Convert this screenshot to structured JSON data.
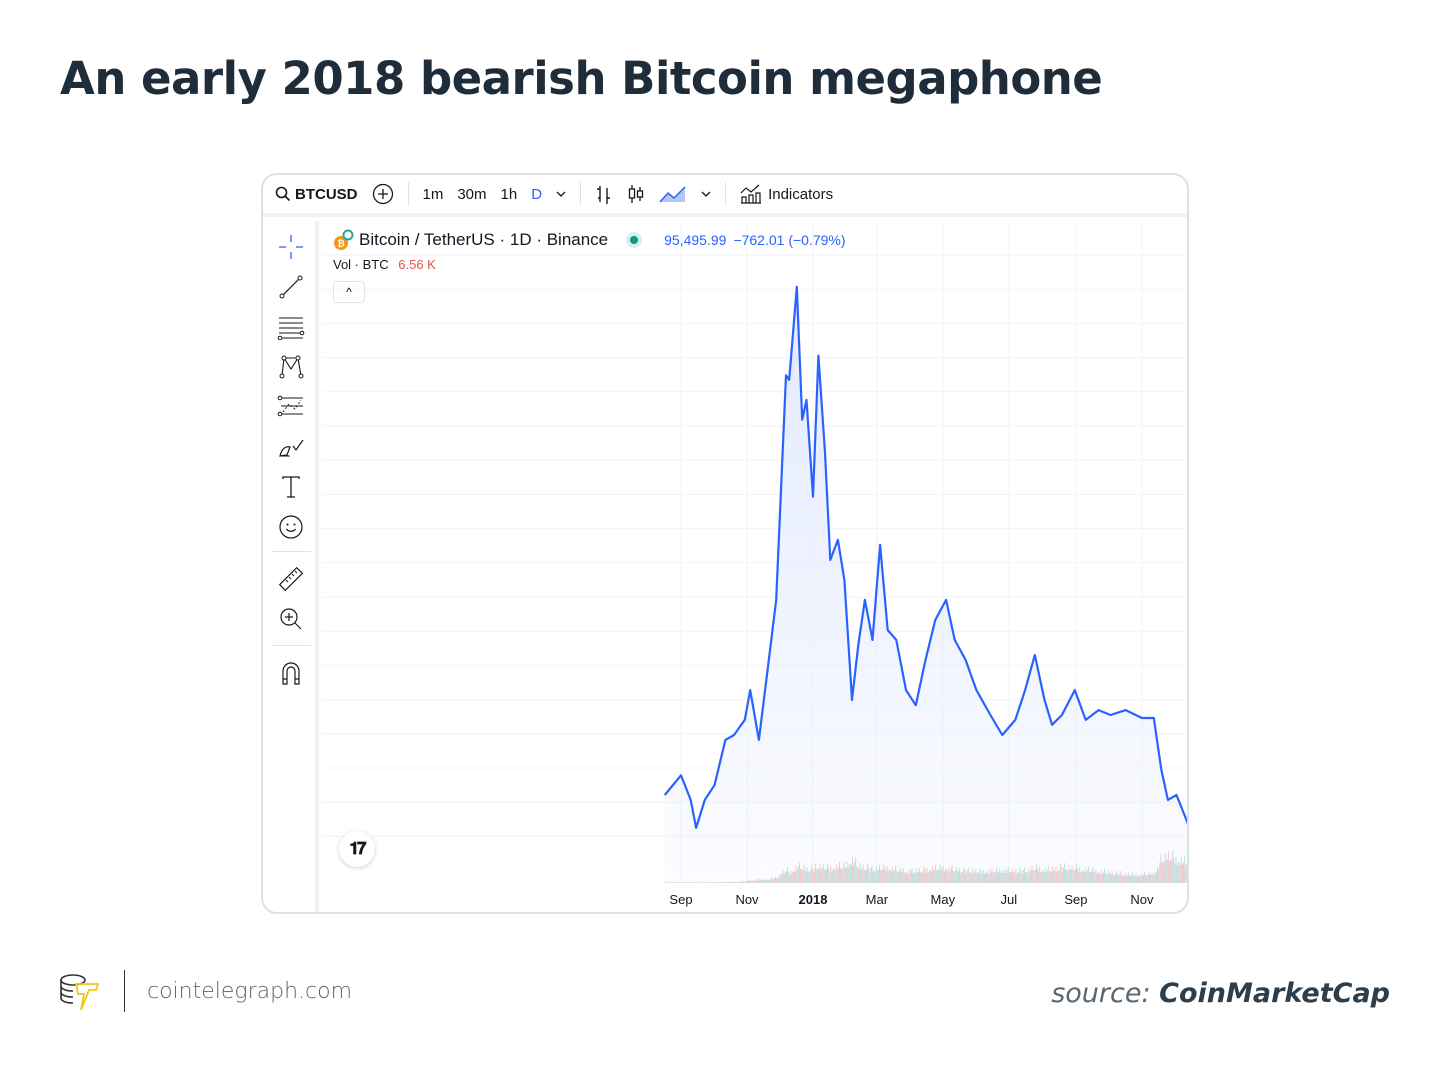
{
  "title": "An early 2018 bearish Bitcoin megaphone",
  "toolbar": {
    "symbol": "BTCUSD",
    "intervals": [
      "1m",
      "30m",
      "1h",
      "D"
    ],
    "active_interval": "D",
    "indicators_label": "Indicators",
    "icons": [
      "search-icon",
      "add-symbol-icon",
      "chevron-down-icon",
      "bar-chart-icon",
      "candlestick-icon",
      "area-chart-icon",
      "indicators-icon"
    ]
  },
  "tools": [
    "crosshair-icon",
    "trend-line-icon",
    "fib-icon",
    "pattern-icon",
    "forecast-icon",
    "brush-icon",
    "text-icon",
    "emoji-icon",
    "ruler-icon",
    "zoom-in-icon",
    "magnet-icon"
  ],
  "legend": {
    "pair": "Bitcoin / TetherUS · 1D · Binance",
    "price": "95,495.99",
    "change": "−762.01 (−0.79%)",
    "vol_label": "Vol · BTC",
    "vol_value": "6.56 K",
    "collapse": "^"
  },
  "logo_text": "TV",
  "colors": {
    "line": "#2962ff",
    "fill": "#e3eafd",
    "price_text": "#2962ff",
    "vol_text": "#e5534b",
    "vol_up": "#b2dfdb",
    "vol_down": "#f7c1c1",
    "title": "#1f2d3a"
  },
  "chart_data": {
    "type": "area",
    "x_tick_labels": [
      "Sep",
      "Nov",
      "2018",
      "Mar",
      "May",
      "Jul",
      "Sep",
      "Nov"
    ],
    "x_ticks": [
      "2017-09-01",
      "2017-11-01",
      "2018-01-01",
      "2018-03-01",
      "2018-05-01",
      "2018-07-01",
      "2018-09-01",
      "2018-11-01"
    ],
    "xlim": [
      "2017-08-17",
      "2018-12-14"
    ],
    "grid": true,
    "y_axis_visible": false,
    "series": [
      {
        "x": [
          "2017-08-17",
          "2017-09-01",
          "2017-09-10",
          "2017-09-15",
          "2017-09-23",
          "2017-10-02",
          "2017-10-12",
          "2017-10-20",
          "2017-10-30",
          "2017-11-04",
          "2017-11-12",
          "2017-11-19",
          "2017-11-28",
          "2017-12-07",
          "2017-12-10",
          "2017-12-17",
          "2017-12-22",
          "2017-12-26",
          "2018-01-01",
          "2018-01-06",
          "2018-01-12",
          "2018-01-17",
          "2018-01-24",
          "2018-01-30",
          "2018-02-06",
          "2018-02-12",
          "2018-02-18",
          "2018-02-25",
          "2018-03-04",
          "2018-03-11",
          "2018-03-19",
          "2018-03-28",
          "2018-04-06",
          "2018-04-15",
          "2018-04-24",
          "2018-05-04",
          "2018-05-12",
          "2018-05-22",
          "2018-06-01",
          "2018-06-14",
          "2018-06-25",
          "2018-07-07",
          "2018-07-16",
          "2018-07-25",
          "2018-08-03",
          "2018-08-10",
          "2018-08-19",
          "2018-08-31",
          "2018-09-10",
          "2018-09-22",
          "2018-10-03",
          "2018-10-17",
          "2018-11-01",
          "2018-11-12",
          "2018-11-19",
          "2018-11-25",
          "2018-12-03",
          "2018-12-14"
        ],
        "y": [
          4300,
          4900,
          4150,
          3300,
          4150,
          4600,
          5980,
          6130,
          6590,
          7500,
          5980,
          7850,
          10250,
          17100,
          16960,
          19800,
          15750,
          16350,
          13400,
          17700,
          14800,
          11470,
          12080,
          10860,
          7200,
          8900,
          10250,
          9030,
          11930,
          9330,
          9030,
          7500,
          7040,
          8420,
          9640,
          10250,
          9030,
          8420,
          7500,
          6740,
          6130,
          6590,
          7500,
          8570,
          7200,
          6440,
          6740,
          7500,
          6590,
          6890,
          6740,
          6890,
          6650,
          6650,
          5060,
          4150,
          4300,
          3390
        ],
        "volume_relative": [
          0.02,
          0.02,
          0.02,
          0.02,
          0.02,
          0.02,
          0.03,
          0.03,
          0.05,
          0.08,
          0.1,
          0.1,
          0.15,
          0.4,
          0.3,
          0.5,
          0.45,
          0.4,
          0.4,
          0.5,
          0.45,
          0.45,
          0.5,
          0.5,
          0.7,
          0.5,
          0.45,
          0.4,
          0.45,
          0.45,
          0.4,
          0.35,
          0.35,
          0.4,
          0.45,
          0.45,
          0.4,
          0.35,
          0.35,
          0.35,
          0.4,
          0.35,
          0.35,
          0.45,
          0.4,
          0.4,
          0.45,
          0.45,
          0.4,
          0.35,
          0.3,
          0.25,
          0.25,
          0.3,
          0.7,
          0.8,
          0.7,
          0.6
        ]
      }
    ]
  },
  "footer": {
    "site": "cointelegraph.com",
    "source_prefix": "source:",
    "source_name": "CoinMarketCap"
  }
}
